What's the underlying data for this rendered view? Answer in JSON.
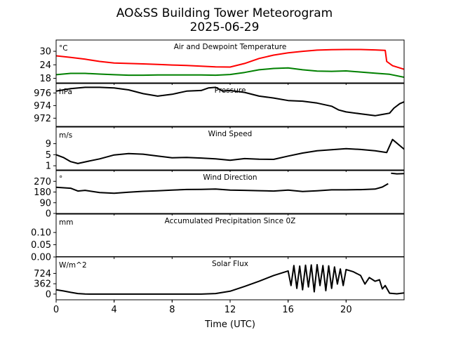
{
  "figure": {
    "title_line1": "AO&SS Building Tower Meteorogram",
    "title_line2": "2025-06-29",
    "xlabel": "Time (UTC)"
  },
  "chart_data": {
    "type": "line",
    "xlim": [
      0,
      24
    ],
    "xticks": [
      0,
      4,
      8,
      12,
      16,
      20
    ],
    "xtick_labels": [
      "0",
      "4",
      "8",
      "12",
      "16",
      "20"
    ],
    "panels": [
      {
        "key": "temp",
        "title": "Air and Dewpoint Temperature",
        "unit": "°C",
        "ylim": [
          16,
          35
        ],
        "yticks": [
          18,
          24,
          30
        ],
        "ytick_labels": [
          "18",
          "24",
          "30"
        ],
        "series": [
          {
            "color": "#ff0000",
            "x": [
              0,
              1,
              2,
              3,
              4,
              5,
              6,
              7,
              8,
              9,
              10,
              11,
              12,
              13,
              14,
              15,
              16,
              17,
              18,
              19,
              20,
              21,
              22,
              22.7,
              22.8,
              23.2,
              24
            ],
            "y": [
              28,
              27.3,
              26.5,
              25.5,
              24.8,
              24.6,
              24.4,
              24.2,
              23.9,
              23.7,
              23.4,
              23.1,
              23.0,
              24.6,
              26.8,
              28.3,
              29.3,
              30.0,
              30.5,
              30.7,
              30.8,
              30.8,
              30.6,
              30.4,
              25.5,
              23.6,
              22.0
            ]
          },
          {
            "color": "#008000",
            "x": [
              0,
              1,
              2,
              3,
              4,
              5,
              6,
              7,
              8,
              9,
              10,
              11,
              12,
              13,
              14,
              15,
              16,
              17,
              18,
              19,
              20,
              21,
              22,
              23,
              24
            ],
            "y": [
              19.6,
              20.2,
              20.2,
              19.9,
              19.6,
              19.4,
              19.4,
              19.5,
              19.5,
              19.5,
              19.5,
              19.4,
              19.7,
              20.6,
              21.8,
              22.4,
              22.6,
              21.8,
              21.2,
              21.1,
              21.3,
              20.8,
              20.3,
              19.8,
              18.5
            ]
          }
        ]
      },
      {
        "key": "pressure",
        "title": "Pressure",
        "unit": "hPa",
        "ylim": [
          970.7,
          977.5
        ],
        "yticks": [
          972,
          974,
          976
        ],
        "ytick_labels": [
          "972",
          "974",
          "976"
        ],
        "series": [
          {
            "color": "#000000",
            "x": [
              0,
              1,
              2,
              3,
              4,
              5,
              6,
              7,
              8,
              9,
              10,
              10.5,
              11,
              11.5,
              12,
              13,
              14,
              15,
              16,
              17,
              18,
              19,
              19.5,
              20,
              21,
              22,
              22.5,
              23,
              23.3,
              23.7,
              24
            ],
            "y": [
              976.3,
              976.7,
              976.9,
              976.9,
              976.8,
              976.5,
              975.9,
              975.5,
              975.8,
              976.3,
              976.4,
              976.8,
              976.9,
              976.3,
              976.4,
              976.1,
              975.5,
              975.2,
              974.8,
              974.7,
              974.4,
              973.9,
              973.3,
              973.0,
              972.7,
              972.4,
              972.6,
              972.8,
              973.6,
              974.3,
              974.6
            ]
          }
        ]
      },
      {
        "key": "wspd",
        "title": "Wind Speed",
        "unit": "m/s",
        "ylim": [
          -0.5,
          15
        ],
        "yticks": [
          1,
          5,
          9
        ],
        "ytick_labels": [
          "1",
          "5",
          "9"
        ],
        "series": [
          {
            "color": "#000000",
            "x": [
              0,
              0.5,
              1,
              1.5,
              2,
              3,
              4,
              5,
              6,
              7,
              8,
              9,
              10,
              11,
              12,
              13,
              14,
              15,
              16,
              17,
              18,
              19,
              20,
              21,
              22,
              22.8,
              23.2,
              24
            ],
            "y": [
              5.0,
              4.0,
              2.5,
              1.8,
              2.4,
              3.5,
              4.9,
              5.4,
              5.2,
              4.5,
              3.9,
              4.0,
              3.8,
              3.5,
              3.0,
              3.6,
              3.4,
              3.3,
              4.5,
              5.6,
              6.4,
              6.8,
              7.2,
              6.9,
              6.4,
              5.8,
              10.5,
              7.0
            ]
          }
        ]
      },
      {
        "key": "wdir",
        "title": "Wind Direction",
        "unit": "°",
        "ylim": [
          0,
          360
        ],
        "yticks": [
          0,
          90,
          180,
          270
        ],
        "ytick_labels": [
          "0",
          "90",
          "180",
          "270"
        ],
        "series": [
          {
            "color": "#000000",
            "x": [
              0,
              1,
              1.5,
              2,
              3,
              4,
              5,
              6,
              7,
              8,
              9,
              10,
              11,
              12,
              13,
              14,
              15,
              16,
              17,
              18,
              19,
              20,
              21,
              22,
              22.5,
              22.9
            ],
            "y": [
              220,
              212,
              188,
              194,
              176,
              170,
              178,
              186,
              190,
              196,
              201,
              202,
              205,
              196,
              194,
              191,
              188,
              196,
              184,
              190,
              198,
              198,
              200,
              205,
              222,
              250
            ]
          },
          {
            "color": "#000000",
            "x": [
              23.1,
              23.5,
              24
            ],
            "y": [
              338,
              333,
              335
            ]
          }
        ]
      },
      {
        "key": "precip",
        "title": "Accumulated Precipitation Since 0Z",
        "unit": "mm",
        "ylim": [
          0,
          0.175
        ],
        "yticks": [
          0.0,
          0.05,
          0.1
        ],
        "ytick_labels": [
          "0.00",
          "0.05",
          "0.10"
        ],
        "series": [
          {
            "color": "#000000",
            "x": [
              0,
              24
            ],
            "y": [
              0,
              0
            ]
          }
        ]
      },
      {
        "key": "solar",
        "title": "Solar Flux",
        "unit": "W/m^2",
        "ylim": [
          -200,
          1300
        ],
        "yticks": [
          0,
          362,
          724
        ],
        "ytick_labels": [
          "0",
          "362",
          "724"
        ],
        "series": [
          {
            "color": "#000000",
            "x": [
              0,
              0.5,
              1,
              1.5,
              2,
              4,
              6,
              8,
              10,
              11,
              12,
              13,
              14,
              15,
              16,
              16.2,
              16.4,
              16.6,
              16.8,
              17,
              17.2,
              17.4,
              17.6,
              17.8,
              18,
              18.2,
              18.4,
              18.6,
              18.8,
              19,
              19.2,
              19.4,
              19.6,
              19.8,
              20,
              20.5,
              21,
              21.3,
              21.6,
              22,
              22.3,
              22.5,
              22.7,
              23,
              23.5,
              24
            ],
            "y": [
              150,
              110,
              60,
              20,
              2,
              0,
              0,
              0,
              0,
              20,
              100,
              270,
              450,
              650,
              810,
              300,
              1000,
              200,
              980,
              150,
              1010,
              250,
              1020,
              80,
              1030,
              300,
              1000,
              120,
              990,
              200,
              950,
              350,
              880,
              300,
              860,
              780,
              650,
              350,
              580,
              450,
              500,
              180,
              300,
              30,
              10,
              40
            ]
          }
        ]
      }
    ]
  }
}
